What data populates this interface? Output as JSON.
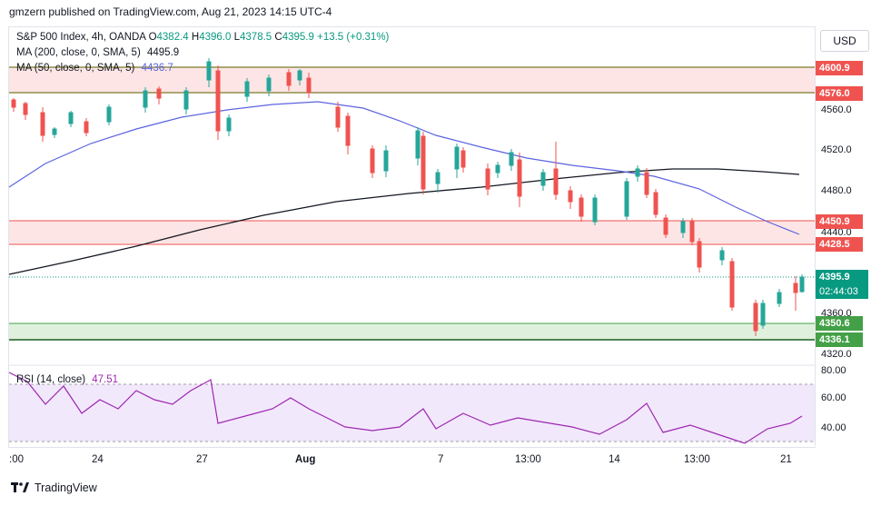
{
  "header": {
    "publish_line": "gmzern published on TradingView.com, Aug 21, 2023 14:15 UTC-4"
  },
  "legend": {
    "symbol": "S&P 500 Index, 4h, OANDA",
    "o_label": "O",
    "o": "4382.4",
    "h_label": "H",
    "h": "4396.0",
    "l_label": "L",
    "l": "4378.5",
    "c_label": "C",
    "c": "4395.9",
    "change": "+13.5 (+0.31%)",
    "ma200_label": "MA (200, close, 0, SMA, 5)",
    "ma200": "4495.9",
    "ma50_label": "MA (50, close, 0, SMA, 5)",
    "ma50": "4436.7",
    "rsi_label": "RSI (14, close)",
    "rsi": "47.51"
  },
  "currency": "USD",
  "price_ticks": [
    "4560.0",
    "4520.0",
    "4480.0",
    "4440.0",
    "4360.0",
    "4320.0"
  ],
  "rsi_ticks": [
    "80.00",
    "60.00",
    "40.00"
  ],
  "level_tags": [
    {
      "label": "4600.9",
      "color": "#ef5350"
    },
    {
      "label": "4576.0",
      "color": "#ef5350"
    },
    {
      "label": "4450.9",
      "color": "#ef5350"
    },
    {
      "label": "4428.5",
      "color": "#ef5350"
    },
    {
      "label": "4350.6",
      "color": "#43a047"
    },
    {
      "label": "4336.1",
      "color": "#43a047"
    }
  ],
  "last_price": {
    "value": "4395.9",
    "countdown": "02:44:03",
    "color": "#089981"
  },
  "x_ticks": [
    ":00",
    "24",
    "27",
    "Aug",
    "7",
    "13:00",
    "14",
    "13:00",
    "21"
  ],
  "footer": {
    "brand": "TradingView"
  },
  "colors": {
    "up": "#26a69a",
    "down": "#ef5350",
    "ma50": "#5b63e0",
    "ma200": "#131722",
    "rsi": "#9c27b0"
  }
}
